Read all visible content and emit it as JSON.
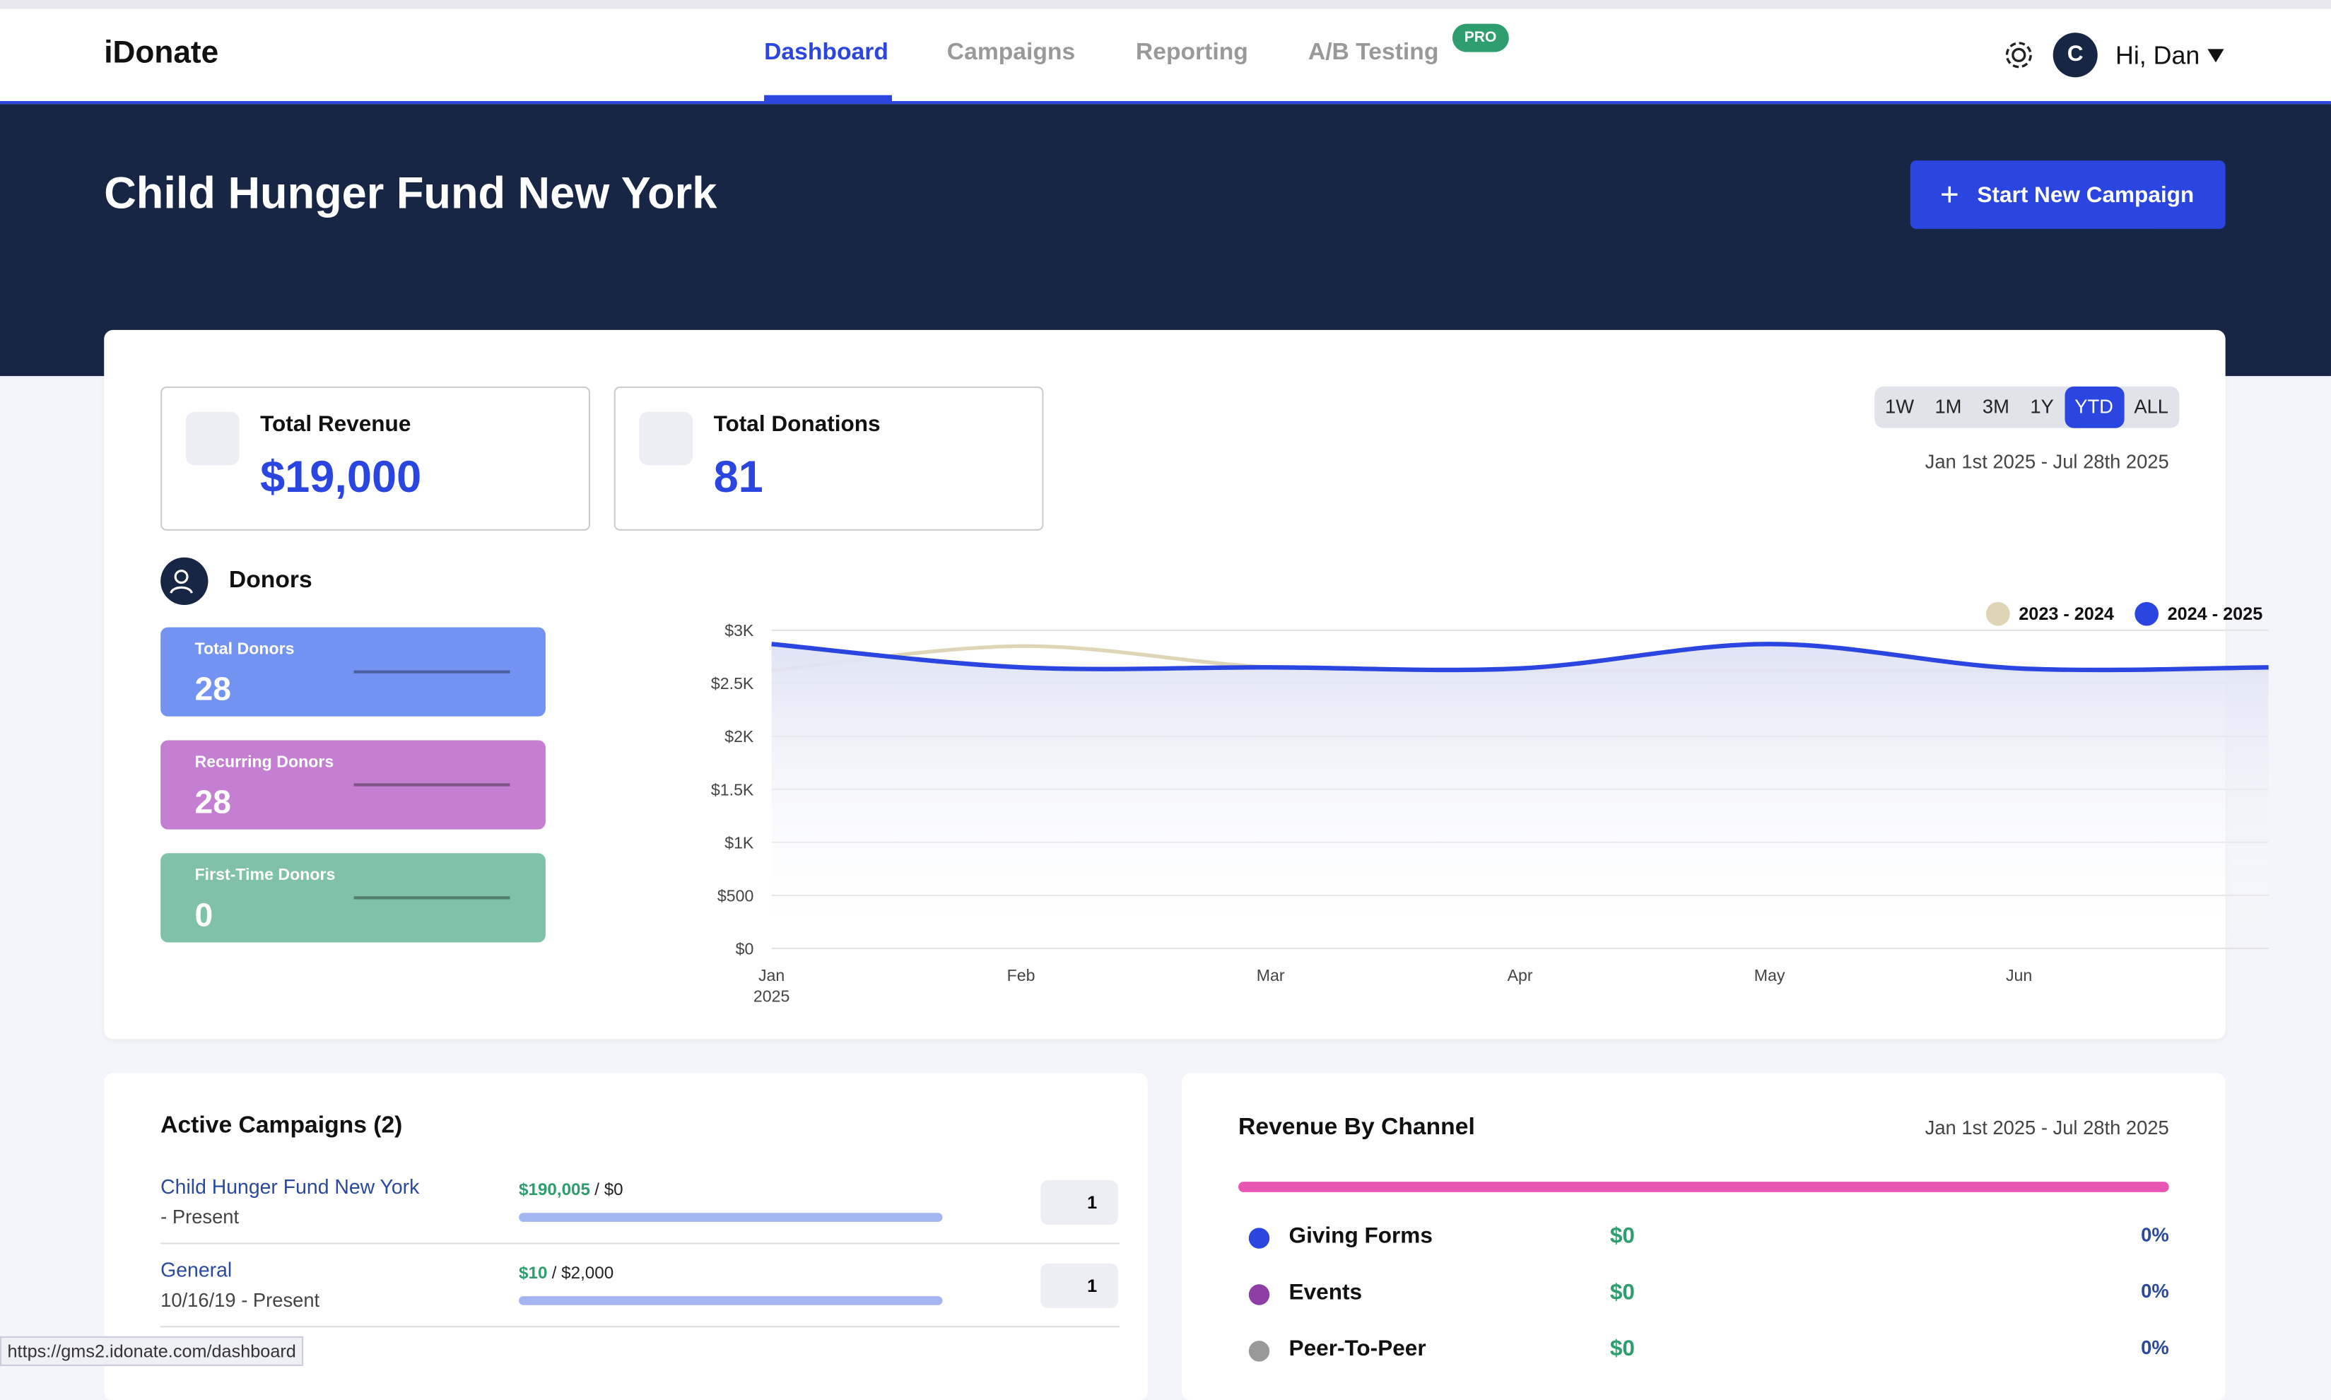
{
  "nav": {
    "logo": "iDonate",
    "links": [
      "Dashboard",
      "Campaigns",
      "Reporting",
      "A/B Testing"
    ],
    "badge": "PRO",
    "avatar": "C",
    "user": "Hi, Dan"
  },
  "header": {
    "title": "Child Hunger Fund New York",
    "button": "Start New Campaign"
  },
  "stats": [
    {
      "label": "Total Revenue",
      "value": "$19,000"
    },
    {
      "label": "Total Donations",
      "value": "81"
    }
  ],
  "ranges": [
    "1W",
    "1M",
    "3M",
    "1Y",
    "YTD",
    "ALL"
  ],
  "active_range": 4,
  "date_range": "Jan 1st 2025 - Jul 28th 2025",
  "donors": {
    "title": "Donors",
    "cards": [
      {
        "label": "Total Donors",
        "value": "28",
        "color": "#7393f3"
      },
      {
        "label": "Recurring Donors",
        "value": "28",
        "color": "#c47fd2"
      },
      {
        "label": "First-Time Donors",
        "value": "0",
        "color": "#7fc2a8"
      }
    ]
  },
  "chart_data": {
    "type": "line",
    "categories": [
      "Jan",
      "Feb",
      "Mar",
      "Apr",
      "May",
      "Jun",
      null
    ],
    "x_year": "2025",
    "series": [
      {
        "name": "2023 - 2024",
        "color": "#ddd5b5",
        "values": [
          2620,
          2850,
          2650,
          2620,
          2620,
          2620,
          2620
        ]
      },
      {
        "name": "2024 - 2025",
        "color": "#2a45e0",
        "values": [
          2870,
          2650,
          2650,
          2640,
          2870,
          2640,
          2650
        ]
      }
    ],
    "ylim": [
      0,
      3000
    ],
    "yticks": [
      {
        "value": 0,
        "label": "$0"
      },
      {
        "value": 500,
        "label": "$500"
      },
      {
        "value": 1000,
        "label": "$1K"
      },
      {
        "value": 1500,
        "label": "$1.5K"
      },
      {
        "value": 2000,
        "label": "$2K"
      },
      {
        "value": 2500,
        "label": "$2.5K"
      },
      {
        "value": 3000,
        "label": "$3K"
      }
    ],
    "grid": true
  },
  "campaigns": {
    "title": "Active Campaigns (2)",
    "items": [
      {
        "name": "Child Hunger Fund New York",
        "dates": "- Present",
        "raised": "$190,005",
        "goal": "/ $0",
        "count": "1"
      },
      {
        "name": "General",
        "dates": "10/16/19 - Present",
        "raised": "$10",
        "goal": "/ $2,000",
        "count": "1"
      }
    ]
  },
  "revenue": {
    "title": "Revenue By Channel",
    "date": "Jan 1st 2025 - Jul 28th 2025",
    "channels": [
      {
        "name": "Giving Forms",
        "color": "#2a45e0",
        "amount": "$0",
        "pct": "0%"
      },
      {
        "name": "Events",
        "color": "#8e3fa6",
        "amount": "$0",
        "pct": "0%"
      },
      {
        "name": "Peer-To-Peer",
        "color": "#999",
        "amount": "$0",
        "pct": "0%"
      }
    ]
  },
  "status_url": "https://gms2.idonate.com/dashboard"
}
